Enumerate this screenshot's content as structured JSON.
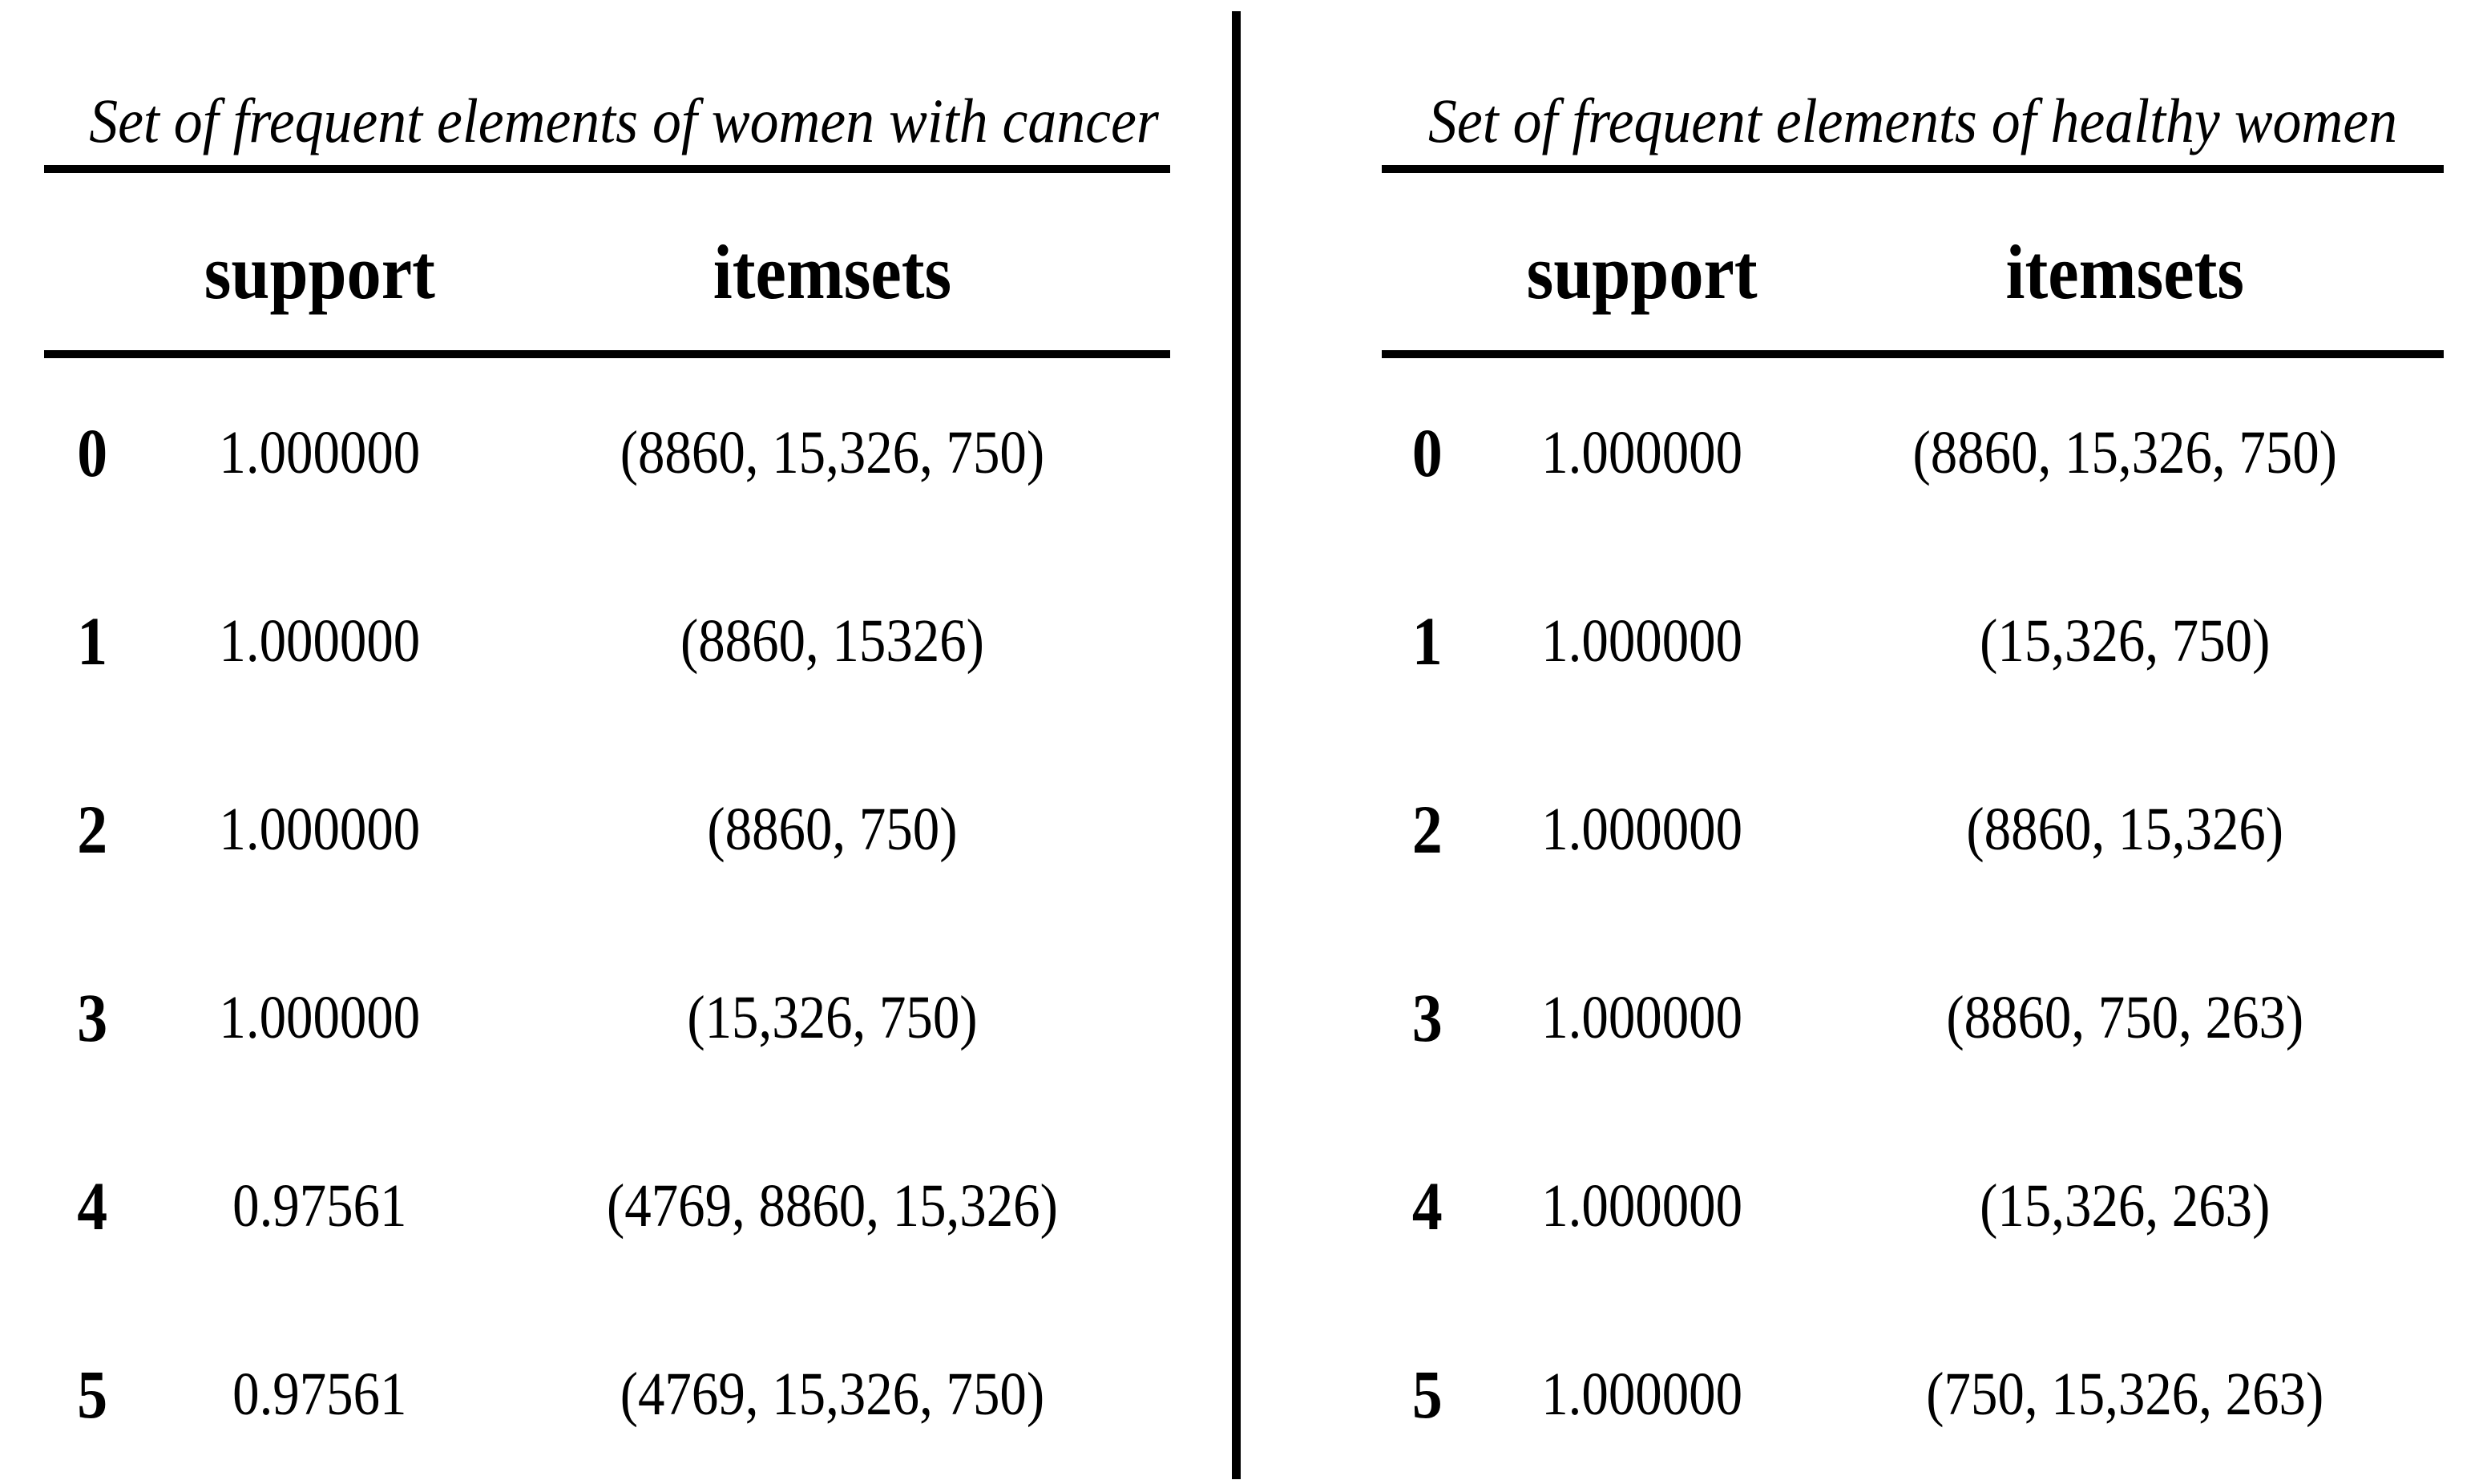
{
  "page": {
    "background": "#ffffff",
    "divider_color": "#000000",
    "text_color": "#000000"
  },
  "chart_data": [
    {
      "type": "table",
      "title": "Set of frequent elements of women with cancer",
      "columns": [
        "support",
        "itemsets"
      ],
      "rows": [
        [
          "0",
          "1.000000",
          "(8860, 15,326, 750)"
        ],
        [
          "1",
          "1.000000",
          "(8860, 15326)"
        ],
        [
          "2",
          "1.000000",
          "(8860, 750)"
        ],
        [
          "3",
          "1.000000",
          "(15,326, 750)"
        ],
        [
          "4",
          "0.97561",
          "(4769, 8860, 15,326)"
        ],
        [
          "5",
          "0.97561",
          "(4769, 15,326, 750)"
        ]
      ]
    },
    {
      "type": "table",
      "title": "Set of frequent elements of healthy women",
      "columns": [
        "support",
        "itemsets"
      ],
      "rows": [
        [
          "0",
          "1.000000",
          "(8860, 15,326, 750)"
        ],
        [
          "1",
          "1.000000",
          "(15,326, 750)"
        ],
        [
          "2",
          "1.000000",
          "(8860, 15,326)"
        ],
        [
          "3",
          "1.000000",
          "(8860, 750, 263)"
        ],
        [
          "4",
          "1.000000",
          "(15,326, 263)"
        ],
        [
          "5",
          "1.000000",
          "(750, 15,326, 263)"
        ]
      ]
    }
  ]
}
